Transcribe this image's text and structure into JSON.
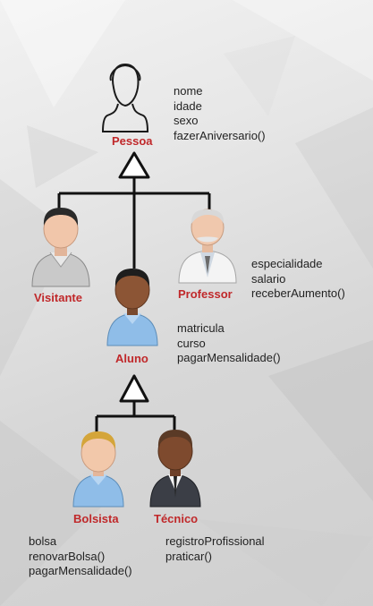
{
  "classes": {
    "pessoa": {
      "name": "Pessoa",
      "members": [
        "nome",
        "idade",
        "sexo",
        "fazerAniversario()"
      ]
    },
    "visitante": {
      "name": "Visitante",
      "members": []
    },
    "professor": {
      "name": "Professor",
      "members": [
        "especialidade",
        "salario",
        "receberAumento()"
      ]
    },
    "aluno": {
      "name": "Aluno",
      "members": [
        "matricula",
        "curso",
        "pagarMensalidade()"
      ]
    },
    "bolsista": {
      "name": "Bolsista",
      "members": [
        "bolsa",
        "renovarBolsa()",
        "pagarMensalidade()"
      ]
    },
    "tecnico": {
      "name": "Técnico",
      "members": [
        "registroProfissional",
        "praticar()"
      ]
    }
  },
  "colors": {
    "class_name": "#c0282a",
    "member_text": "#222222",
    "connector": "#111111"
  },
  "icons": {
    "pessoa": "person-outline-icon",
    "visitante": "person-gray-shirt-icon",
    "professor": "elderly-man-lab-coat-icon",
    "aluno": "student-blue-shirt-icon",
    "bolsista": "blond-student-blue-shirt-icon",
    "tecnico": "man-suit-tie-icon"
  }
}
